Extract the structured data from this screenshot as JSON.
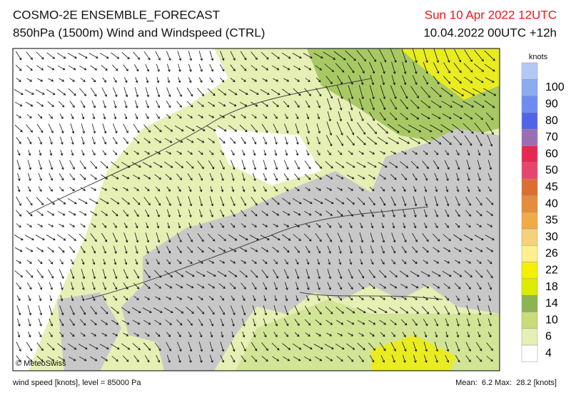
{
  "header": {
    "title": "COSMO-2E ENSEMBLE_FORECAST",
    "subtitle": "850hPa (1500m) Wind and Windspeed (CTRL)",
    "valid_time": "Sun 10 Apr 2022 12UTC",
    "run_time": "10.04.2022 00UTC +12h"
  },
  "map": {
    "credit": "© MeteoSwiss"
  },
  "legend": {
    "unit": "knots",
    "labels": [
      "100",
      "90",
      "80",
      "70",
      "60",
      "50",
      "45",
      "40",
      "35",
      "30",
      "26",
      "22",
      "18",
      "14",
      "10",
      "6",
      "4"
    ],
    "colors": [
      "#b4c8f5",
      "#8cabf0",
      "#6e8cf0",
      "#5064e6",
      "#9b6eb4",
      "#e62850",
      "#e6466e",
      "#dc6e32",
      "#e68c3c",
      "#f0aa46",
      "#f5d278",
      "#fff08c",
      "#f5f000",
      "#dceb00",
      "#8cb450",
      "#c8dc78",
      "#e6efb4",
      "#ffffff"
    ]
  },
  "footer": {
    "description": "wind speed [knots], level = 85000 Pa",
    "stats": "Mean:  6.2 Max:  28.2 [knots]"
  }
}
